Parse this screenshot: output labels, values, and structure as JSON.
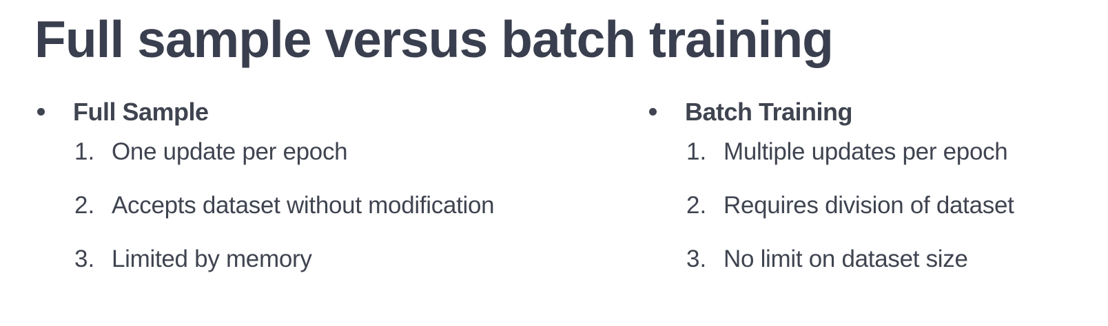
{
  "slide": {
    "title": "Full sample versus batch training"
  },
  "left": {
    "heading": "Full Sample",
    "items": [
      {
        "num": "1.",
        "text": "One update per epoch"
      },
      {
        "num": "2.",
        "text": "Accepts dataset without modification"
      },
      {
        "num": "3.",
        "text": "Limited by memory"
      }
    ]
  },
  "right": {
    "heading": "Batch Training",
    "items": [
      {
        "num": "1.",
        "text": "Multiple updates per epoch"
      },
      {
        "num": "2.",
        "text": "Requires division of dataset"
      },
      {
        "num": "3.",
        "text": "No limit on dataset size"
      }
    ]
  },
  "colors": {
    "title": "#3a3f4f",
    "text": "#3f4450",
    "background": "#ffffff"
  }
}
